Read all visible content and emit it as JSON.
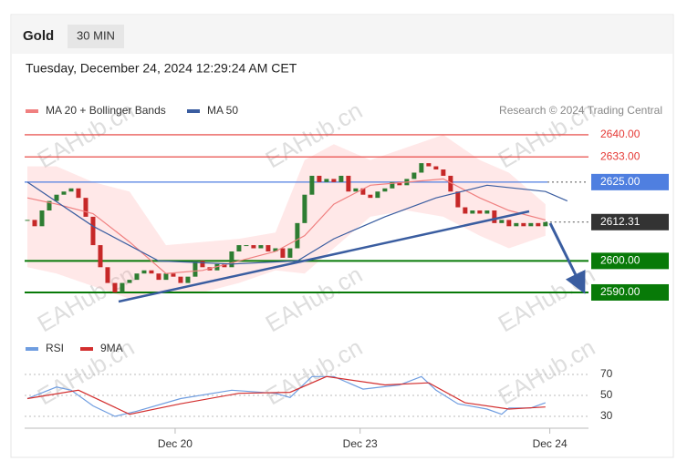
{
  "header": {
    "symbol": "Gold",
    "interval": "30 MIN",
    "datetime": "Tuesday, December 24, 2024 12:29:24 AM CET",
    "credit": "Research © 2024 Trading Central"
  },
  "watermark": "EAHub.cn",
  "chart_data": [
    {
      "type": "candlestick",
      "up_color": "#2e7d32",
      "down_color": "#c62828",
      "close": [
        2613,
        2611,
        2616,
        2619,
        2621,
        2622,
        2623,
        2620,
        2614,
        2605,
        2598,
        2593,
        2590,
        2593,
        2594,
        2596,
        2597,
        2596,
        2594,
        2596,
        2595,
        2593,
        2595,
        2600,
        2598,
        2597,
        2599,
        2598,
        2603,
        2605,
        2605,
        2604,
        2605,
        2603,
        2604,
        2601,
        2604,
        2612,
        2621,
        2627,
        2625,
        2626,
        2625,
        2627,
        2622,
        2623,
        2621,
        2620,
        2622,
        2623,
        2625,
        2624,
        2626,
        2628,
        2631,
        2630,
        2629,
        2627,
        2622,
        2617,
        2615,
        2616,
        2615,
        2616,
        2612,
        2613,
        2611,
        2612,
        2611,
        2612,
        2611,
        2612.31
      ],
      "xlim": [
        -0.375,
        76.9
      ],
      "ylim": [
        2579.3,
        2642.3
      ],
      "xticks": [
        {
          "value": 20.25,
          "label": "Dec 20"
        },
        {
          "value": 45.6,
          "label": "Dec 23"
        },
        {
          "value": 71.6,
          "label": "Dec 24"
        }
      ],
      "series": [
        {
          "name": "MA 20 + Bollinger Bands",
          "color": "#f08080",
          "x": [
            0,
            4,
            9,
            14,
            19,
            24,
            29,
            34,
            38,
            42,
            47,
            52,
            57,
            62,
            66,
            71
          ],
          "values": [
            2620,
            2618,
            2615,
            2606,
            2596,
            2597,
            2600,
            2603,
            2608,
            2618,
            2624,
            2625,
            2626,
            2620,
            2616,
            2613
          ],
          "upper": [
            2630,
            2630,
            2625,
            2622,
            2605,
            2606,
            2607,
            2609,
            2632,
            2637,
            2632,
            2636,
            2640,
            2632,
            2628,
            2618
          ],
          "lower": [
            2598,
            2596,
            2592,
            2588,
            2590,
            2590,
            2593,
            2597,
            2596,
            2604,
            2614,
            2616,
            2614,
            2608,
            2604,
            2608
          ]
        },
        {
          "name": "MA 50",
          "color": "#3a5da0",
          "x": [
            0,
            9,
            18,
            28,
            37,
            42,
            49,
            56,
            63,
            71,
            74
          ],
          "values": [
            2625,
            2611,
            2600,
            2599,
            2600,
            2607,
            2614,
            2620,
            2624,
            2622,
            2619
          ]
        }
      ],
      "levels": [
        {
          "value": 2640,
          "label": "2640.00",
          "color": "#e53935",
          "style": "text",
          "line": "solid"
        },
        {
          "value": 2633,
          "label": "2633.00",
          "color": "#e53935",
          "style": "text",
          "line": "solid"
        },
        {
          "value": 2625,
          "label": "2625.00",
          "color": "#4f7fe0",
          "style": "box",
          "line": "solid"
        },
        {
          "value": 2612.31,
          "label": "2612.31",
          "color": "#333333",
          "style": "box",
          "line": "dotted"
        },
        {
          "value": 2600,
          "label": "2600.00",
          "color": "#087a08",
          "style": "box",
          "line": "solid"
        },
        {
          "value": 2590,
          "label": "2590.00",
          "color": "#087a08",
          "style": "box",
          "line": "solid"
        }
      ]
    },
    {
      "type": "line",
      "ylim": [
        22.2,
        83.9
      ],
      "yticks": [
        70,
        50,
        30
      ],
      "series": [
        {
          "name": "RSI",
          "color": "#6f9de0",
          "x": [
            0,
            4,
            6,
            9,
            12,
            15,
            21,
            28,
            34,
            36,
            39,
            42,
            46,
            51,
            54,
            56,
            59,
            63,
            65,
            66,
            69,
            71
          ],
          "values": [
            47,
            58,
            55,
            40,
            30,
            35,
            47,
            55,
            52,
            48,
            68,
            68,
            56,
            60,
            68,
            55,
            42,
            37,
            32,
            38,
            38,
            43
          ]
        },
        {
          "name": "9MA",
          "color": "#d32f2f",
          "x": [
            0,
            7,
            14,
            21,
            29,
            36,
            41,
            49,
            55,
            60,
            66,
            71
          ],
          "values": [
            47,
            55,
            32,
            42,
            52,
            53,
            68,
            60,
            62,
            43,
            37,
            39
          ]
        }
      ]
    }
  ]
}
